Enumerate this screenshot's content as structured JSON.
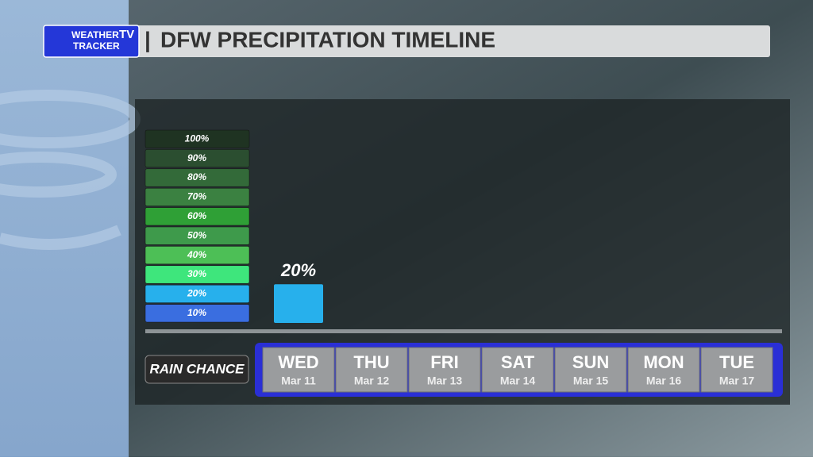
{
  "brand": {
    "name": "WEATHER",
    "badge": "TV",
    "sub": "TRACKER"
  },
  "chart_data": {
    "type": "bar",
    "title": "DFW PRECIPITATION TIMELINE",
    "row_label": "RAIN CHANCE",
    "categories": [
      "WED",
      "THU",
      "FRI",
      "SAT",
      "SUN",
      "MON",
      "TUE"
    ],
    "dates": [
      "Mar 11",
      "Mar 12",
      "Mar 13",
      "Mar 14",
      "Mar 15",
      "Mar 16",
      "Mar 17"
    ],
    "values": [
      20,
      null,
      null,
      null,
      null,
      null,
      null
    ],
    "value_labels": [
      "20%",
      null,
      null,
      null,
      null,
      null,
      null
    ],
    "color": "#27b0ec",
    "ylim": [
      0,
      100
    ],
    "yticks": [
      {
        "value": 10,
        "label": "10%"
      },
      {
        "value": 20,
        "label": "20%"
      },
      {
        "value": 30,
        "label": "30%"
      },
      {
        "value": 40,
        "label": "40%"
      },
      {
        "value": 50,
        "label": "50%"
      },
      {
        "value": 60,
        "label": "60%"
      },
      {
        "value": 70,
        "label": "70%"
      },
      {
        "value": 80,
        "label": "80%"
      },
      {
        "value": 90,
        "label": "90%"
      },
      {
        "value": 100,
        "label": "100%"
      }
    ],
    "ytick_colors": [
      "#3a6ee0",
      "#27b0ec",
      "#3ee67c",
      "#4dbf56",
      "#3e9a4b",
      "#2fa036",
      "#3b8141",
      "#336a39",
      "#2b4e30",
      "#1f3322"
    ]
  }
}
